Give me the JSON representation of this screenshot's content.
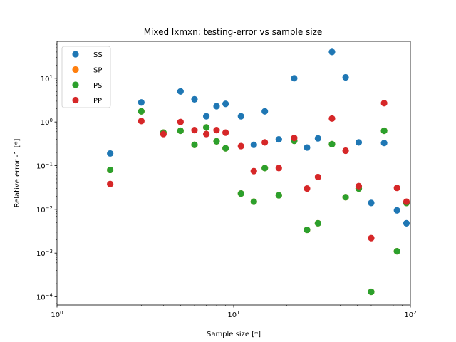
{
  "chart_data": {
    "type": "scatter",
    "title": "Mixed lxmxn: testing-error vs sample size",
    "xlabel": "Sample size [*]",
    "ylabel": "Relative error -1 [*]",
    "xscale": "log",
    "yscale": "log",
    "xlim": [
      1,
      100
    ],
    "ylim": [
      6.5e-05,
      70
    ],
    "grid": false,
    "legend_position": "top-left",
    "x_ticks": [
      {
        "value": 1,
        "base": "10",
        "exp": "0"
      },
      {
        "value": 10,
        "base": "10",
        "exp": "1"
      },
      {
        "value": 100,
        "base": "10",
        "exp": "2"
      }
    ],
    "y_ticks": [
      {
        "value": 0.0001,
        "base": "10",
        "exp": "−4"
      },
      {
        "value": 0.001,
        "base": "10",
        "exp": "−3"
      },
      {
        "value": 0.01,
        "base": "10",
        "exp": "−2"
      },
      {
        "value": 0.1,
        "base": "10",
        "exp": "−1"
      },
      {
        "value": 1,
        "base": "10",
        "exp": "0"
      },
      {
        "value": 10,
        "base": "10",
        "exp": "1"
      }
    ],
    "series": [
      {
        "name": "SS",
        "color": "#1f77b4",
        "points": [
          [
            2,
            0.19
          ],
          [
            3,
            2.8
          ],
          [
            5,
            5.0
          ],
          [
            6,
            3.3
          ],
          [
            7,
            1.35
          ],
          [
            8,
            2.3
          ],
          [
            9,
            2.6
          ],
          [
            11,
            1.35
          ],
          [
            13,
            0.3
          ],
          [
            15,
            1.75
          ],
          [
            18,
            0.4
          ],
          [
            22,
            10.0
          ],
          [
            26,
            0.26
          ],
          [
            30,
            0.42
          ],
          [
            36,
            40.0
          ],
          [
            43,
            10.5
          ],
          [
            51,
            0.34
          ],
          [
            60,
            0.014
          ],
          [
            71,
            0.33
          ],
          [
            84,
            0.0095
          ],
          [
            95,
            0.0048
          ]
        ]
      },
      {
        "name": "SP",
        "color": "#ff7f0e",
        "points": [
          [
            2,
            0.08
          ],
          [
            3,
            1.75
          ],
          [
            4,
            0.57
          ],
          [
            5,
            0.63
          ],
          [
            6,
            0.3
          ],
          [
            7,
            0.75
          ],
          [
            8,
            0.36
          ],
          [
            9,
            0.25
          ],
          [
            11,
            0.023
          ],
          [
            13,
            0.015
          ],
          [
            15,
            0.088
          ],
          [
            18,
            0.021
          ],
          [
            22,
            0.37
          ],
          [
            26,
            0.0034
          ],
          [
            30,
            0.0048
          ],
          [
            36,
            0.31
          ],
          [
            43,
            0.019
          ],
          [
            51,
            0.03
          ],
          [
            60,
            0.00013
          ],
          [
            71,
            0.63
          ],
          [
            84,
            0.0011
          ],
          [
            95,
            0.014
          ]
        ]
      },
      {
        "name": "PS",
        "color": "#2ca02c",
        "points": [
          [
            2,
            0.08
          ],
          [
            3,
            1.75
          ],
          [
            4,
            0.57
          ],
          [
            5,
            0.63
          ],
          [
            6,
            0.3
          ],
          [
            7,
            0.75
          ],
          [
            8,
            0.36
          ],
          [
            9,
            0.25
          ],
          [
            11,
            0.023
          ],
          [
            13,
            0.015
          ],
          [
            15,
            0.088
          ],
          [
            18,
            0.021
          ],
          [
            22,
            0.37
          ],
          [
            26,
            0.0034
          ],
          [
            30,
            0.0048
          ],
          [
            36,
            0.31
          ],
          [
            43,
            0.019
          ],
          [
            51,
            0.03
          ],
          [
            60,
            0.00013
          ],
          [
            71,
            0.63
          ],
          [
            84,
            0.0011
          ],
          [
            95,
            0.014
          ]
        ]
      },
      {
        "name": "PP",
        "color": "#d62728",
        "points": [
          [
            2,
            0.038
          ],
          [
            3,
            1.05
          ],
          [
            4,
            0.53
          ],
          [
            5,
            1.0
          ],
          [
            6,
            0.65
          ],
          [
            7,
            0.53
          ],
          [
            8,
            0.65
          ],
          [
            9,
            0.57
          ],
          [
            11,
            0.28
          ],
          [
            13,
            0.075
          ],
          [
            15,
            0.34
          ],
          [
            18,
            0.088
          ],
          [
            22,
            0.43
          ],
          [
            26,
            0.03
          ],
          [
            30,
            0.055
          ],
          [
            36,
            1.2
          ],
          [
            43,
            0.22
          ],
          [
            51,
            0.034
          ],
          [
            60,
            0.0022
          ],
          [
            71,
            2.7
          ],
          [
            84,
            0.031
          ],
          [
            95,
            0.015
          ]
        ]
      }
    ]
  }
}
